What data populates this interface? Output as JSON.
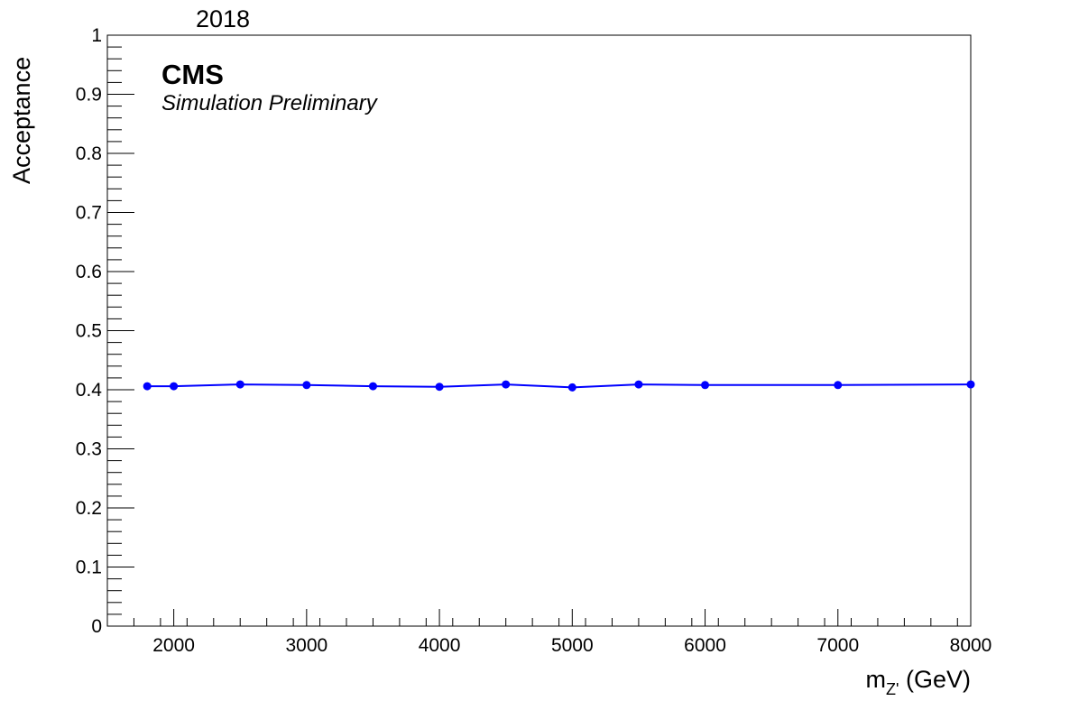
{
  "chart_data": {
    "type": "line",
    "header_text": "2018",
    "experiment": "CMS",
    "status": "Simulation Preliminary",
    "xlabel_main": "m",
    "xlabel_sub": "Z'",
    "xlabel_unit": " (GeV)",
    "ylabel": "Acceptance",
    "xlim": [
      1500,
      8000
    ],
    "ylim": [
      0,
      1
    ],
    "x_ticks": [
      2000,
      3000,
      4000,
      5000,
      6000,
      7000,
      8000
    ],
    "x_tick_labels": [
      "2000",
      "3000",
      "4000",
      "5000",
      "6000",
      "7000",
      "8000"
    ],
    "y_ticks": [
      0,
      0.1,
      0.2,
      0.3,
      0.4,
      0.5,
      0.6,
      0.7,
      0.8,
      0.9,
      1
    ],
    "y_tick_labels": [
      "0",
      "0.1",
      "0.2",
      "0.3",
      "0.4",
      "0.5",
      "0.6",
      "0.7",
      "0.8",
      "0.9",
      "1"
    ],
    "grid": false,
    "series": [
      {
        "color": "#0000ff",
        "x": [
          1800,
          2000,
          2500,
          3000,
          3500,
          4000,
          4500,
          5000,
          5500,
          6000,
          7000,
          8000
        ],
        "y": [
          0.406,
          0.406,
          0.409,
          0.408,
          0.406,
          0.405,
          0.409,
          0.404,
          0.409,
          0.408,
          0.408,
          0.409
        ]
      }
    ]
  }
}
